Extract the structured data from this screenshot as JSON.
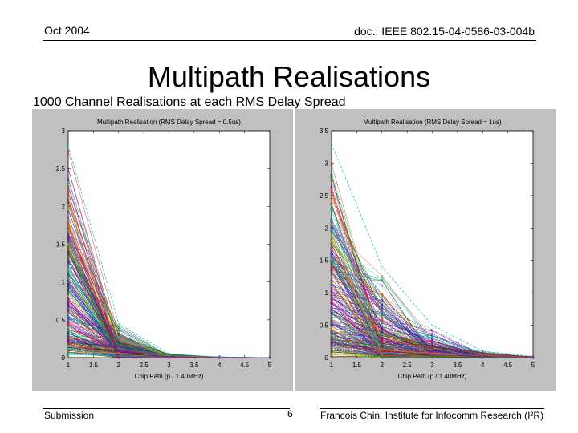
{
  "header": {
    "date": "Oct 2004",
    "doc_id": "doc.: IEEE 802.15-04-0586-03-004b"
  },
  "slide": {
    "title": "Multipath Realisations",
    "subtitle": "1000 Channel Realisations at each RMS Delay Spread"
  },
  "footer": {
    "left": "Submission",
    "page": "6",
    "right": "Francois Chin, Institute for Infocomm Research (I²R)"
  },
  "colors": {
    "figure_background": "#c0c0c0",
    "axes_background": "#ffffff",
    "series_palette": [
      "#0000ff",
      "#008000",
      "#ff0000",
      "#00bfbf",
      "#bf00bf",
      "#bfbf00",
      "#404040"
    ]
  },
  "chart_data": [
    {
      "type": "line",
      "title": "Multipath Realisation (RMS Delay Spread = 0.5us)",
      "xlabel": "Chip Path (p / 1.40MHz)",
      "ylabel": "",
      "xlim": [
        1,
        5
      ],
      "ylim": [
        0,
        3
      ],
      "xticks": [
        "1",
        "1.5",
        "2",
        "2.5",
        "3",
        "3.5",
        "4",
        "4.5",
        "5"
      ],
      "yticks": [
        "0",
        "0.5",
        "1",
        "1.5",
        "2",
        "2.5",
        "3"
      ],
      "x": [
        1,
        2,
        3,
        4,
        5
      ],
      "series_count": 1000,
      "series_envelope": {
        "max": [
          2.8,
          0.45,
          0.05,
          0.01,
          0.0
        ],
        "typical": [
          1.1,
          0.2,
          0.02,
          0.0,
          0.0
        ],
        "min": [
          0.0,
          0.0,
          0.0,
          0.0,
          0.0
        ]
      }
    },
    {
      "type": "line",
      "title": "Multipath Realisation (RMS Delay Spread = 1us)",
      "xlabel": "Chip Path (p / 1.40MHz)",
      "ylabel": "",
      "xlim": [
        1,
        5
      ],
      "ylim": [
        0,
        3.5
      ],
      "xticks": [
        "1",
        "1.5",
        "2",
        "2.5",
        "3",
        "3.5",
        "4",
        "4.5",
        "5"
      ],
      "yticks": [
        "0",
        "0.5",
        "1",
        "1.5",
        "2",
        "2.5",
        "3",
        "3.5"
      ],
      "x": [
        1,
        2,
        3,
        4,
        5
      ],
      "series_count": 1000,
      "series_envelope": {
        "max": [
          3.3,
          1.4,
          0.5,
          0.1,
          0.02
        ],
        "typical": [
          1.7,
          0.6,
          0.15,
          0.03,
          0.0
        ],
        "min": [
          0.0,
          0.0,
          0.0,
          0.0,
          0.0
        ]
      }
    }
  ]
}
